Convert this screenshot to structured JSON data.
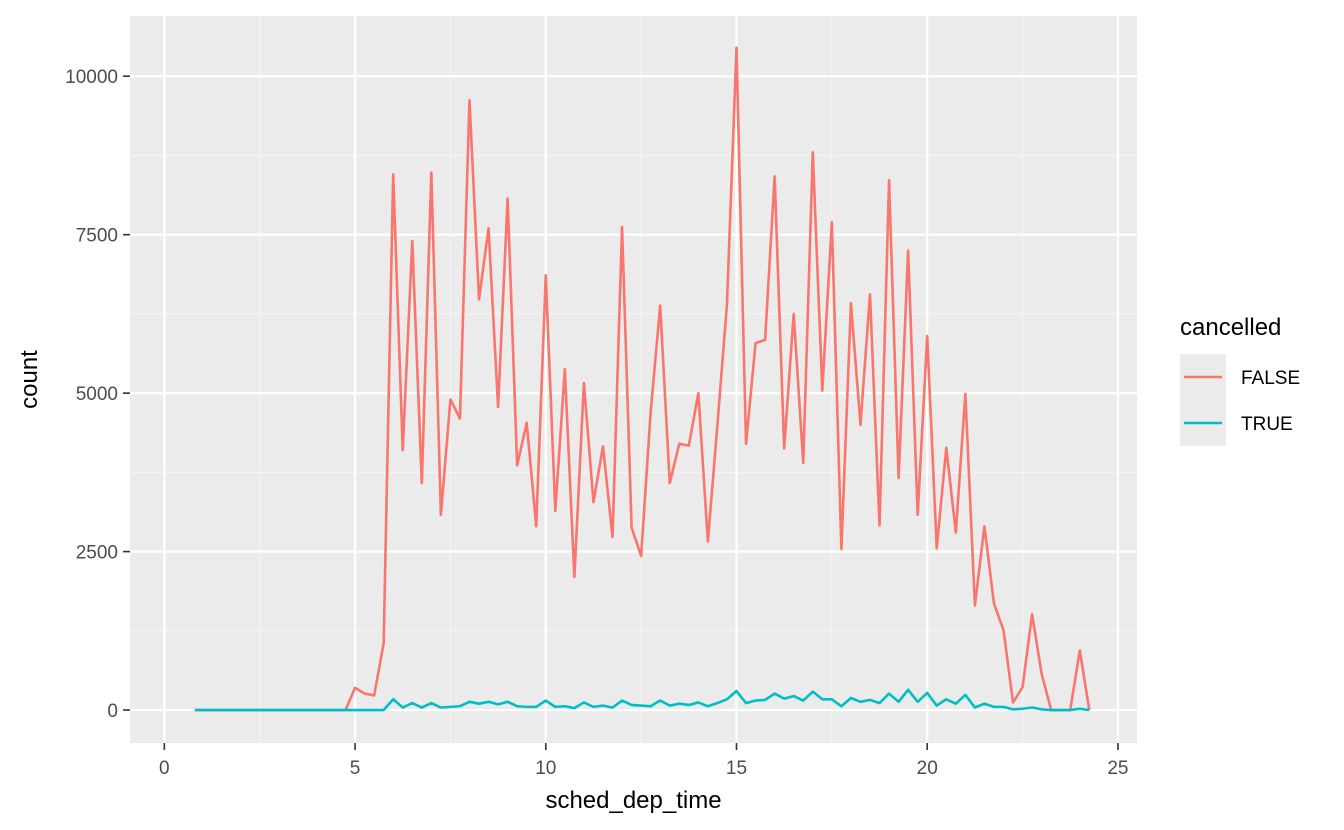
{
  "chart_data": {
    "type": "line",
    "xlabel": "sched_dep_time",
    "ylabel": "count",
    "xlim": [
      -0.9,
      25.5
    ],
    "ylim": [
      -520,
      10950
    ],
    "x_ticks": [
      0,
      5,
      10,
      15,
      20,
      25
    ],
    "y_ticks": [
      0,
      2500,
      5000,
      7500,
      10000
    ],
    "x_tick_labels": [
      "0",
      "5",
      "10",
      "15",
      "20",
      "25"
    ],
    "y_tick_labels": [
      "0",
      "2500",
      "5000",
      "7500",
      "10000"
    ],
    "grid": true,
    "legend": {
      "title": "cancelled",
      "position": "right"
    },
    "series": [
      {
        "name": "FALSE",
        "color": "#F8766D",
        "points": [
          [
            0.8,
            0
          ],
          [
            1.0,
            0
          ],
          [
            1.25,
            0
          ],
          [
            1.5,
            0
          ],
          [
            1.75,
            0
          ],
          [
            2.0,
            0
          ],
          [
            2.25,
            0
          ],
          [
            2.5,
            0
          ],
          [
            2.75,
            0
          ],
          [
            3.0,
            0
          ],
          [
            3.25,
            0
          ],
          [
            3.5,
            0
          ],
          [
            3.75,
            0
          ],
          [
            4.0,
            0
          ],
          [
            4.25,
            0
          ],
          [
            4.5,
            0
          ],
          [
            4.75,
            0
          ],
          [
            5.0,
            350
          ],
          [
            5.25,
            260
          ],
          [
            5.5,
            230
          ],
          [
            5.75,
            1050
          ],
          [
            6.0,
            8450
          ],
          [
            6.25,
            4100
          ],
          [
            6.5,
            7400
          ],
          [
            6.75,
            3580
          ],
          [
            7.0,
            8480
          ],
          [
            7.25,
            3080
          ],
          [
            7.5,
            4900
          ],
          [
            7.75,
            4600
          ],
          [
            8.0,
            9620
          ],
          [
            8.25,
            6480
          ],
          [
            8.5,
            7600
          ],
          [
            8.75,
            4780
          ],
          [
            9.0,
            8070
          ],
          [
            9.25,
            3860
          ],
          [
            9.5,
            4530
          ],
          [
            9.75,
            2900
          ],
          [
            10.0,
            6860
          ],
          [
            10.25,
            3140
          ],
          [
            10.5,
            5380
          ],
          [
            10.75,
            2100
          ],
          [
            11.0,
            5160
          ],
          [
            11.25,
            3280
          ],
          [
            11.5,
            4160
          ],
          [
            11.75,
            2730
          ],
          [
            12.0,
            7620
          ],
          [
            12.25,
            2880
          ],
          [
            12.5,
            2430
          ],
          [
            12.75,
            4700
          ],
          [
            13.0,
            6380
          ],
          [
            13.25,
            3580
          ],
          [
            13.5,
            4200
          ],
          [
            13.75,
            4170
          ],
          [
            14.0,
            5000
          ],
          [
            14.25,
            2660
          ],
          [
            14.5,
            4500
          ],
          [
            14.75,
            6400
          ],
          [
            15.0,
            10450
          ],
          [
            15.25,
            4200
          ],
          [
            15.5,
            5790
          ],
          [
            15.75,
            5840
          ],
          [
            16.0,
            8420
          ],
          [
            16.25,
            4130
          ],
          [
            16.5,
            6250
          ],
          [
            16.75,
            3900
          ],
          [
            17.0,
            8800
          ],
          [
            17.25,
            5040
          ],
          [
            17.5,
            7700
          ],
          [
            17.75,
            2540
          ],
          [
            18.0,
            6420
          ],
          [
            18.25,
            4500
          ],
          [
            18.5,
            6560
          ],
          [
            18.75,
            2910
          ],
          [
            19.0,
            8360
          ],
          [
            19.25,
            3660
          ],
          [
            19.5,
            7250
          ],
          [
            19.75,
            3080
          ],
          [
            20.0,
            5900
          ],
          [
            20.25,
            2550
          ],
          [
            20.5,
            4140
          ],
          [
            20.75,
            2800
          ],
          [
            21.0,
            4990
          ],
          [
            21.25,
            1650
          ],
          [
            21.5,
            2900
          ],
          [
            21.75,
            1680
          ],
          [
            22.0,
            1260
          ],
          [
            22.25,
            120
          ],
          [
            22.5,
            360
          ],
          [
            22.75,
            1510
          ],
          [
            23.0,
            570
          ],
          [
            23.25,
            0
          ],
          [
            23.5,
            0
          ],
          [
            23.75,
            0
          ],
          [
            24.0,
            940
          ],
          [
            24.25,
            0
          ]
        ]
      },
      {
        "name": "TRUE",
        "color": "#00BFC4",
        "points": [
          [
            0.8,
            0
          ],
          [
            1.0,
            0
          ],
          [
            1.25,
            0
          ],
          [
            1.5,
            0
          ],
          [
            1.75,
            0
          ],
          [
            2.0,
            0
          ],
          [
            2.25,
            0
          ],
          [
            2.5,
            0
          ],
          [
            2.75,
            0
          ],
          [
            3.0,
            0
          ],
          [
            3.25,
            0
          ],
          [
            3.5,
            0
          ],
          [
            3.75,
            0
          ],
          [
            4.0,
            0
          ],
          [
            4.25,
            0
          ],
          [
            4.5,
            0
          ],
          [
            4.75,
            0
          ],
          [
            5.0,
            0
          ],
          [
            5.25,
            0
          ],
          [
            5.5,
            0
          ],
          [
            5.75,
            0
          ],
          [
            6.0,
            170
          ],
          [
            6.25,
            40
          ],
          [
            6.5,
            110
          ],
          [
            6.75,
            40
          ],
          [
            7.0,
            110
          ],
          [
            7.25,
            40
          ],
          [
            7.5,
            50
          ],
          [
            7.75,
            60
          ],
          [
            8.0,
            130
          ],
          [
            8.25,
            100
          ],
          [
            8.5,
            130
          ],
          [
            8.75,
            90
          ],
          [
            9.0,
            130
          ],
          [
            9.25,
            60
          ],
          [
            9.5,
            50
          ],
          [
            9.75,
            50
          ],
          [
            10.0,
            150
          ],
          [
            10.25,
            50
          ],
          [
            10.5,
            60
          ],
          [
            10.75,
            30
          ],
          [
            11.0,
            120
          ],
          [
            11.25,
            50
          ],
          [
            11.5,
            70
          ],
          [
            11.75,
            40
          ],
          [
            12.0,
            150
          ],
          [
            12.25,
            80
          ],
          [
            12.5,
            70
          ],
          [
            12.75,
            60
          ],
          [
            13.0,
            150
          ],
          [
            13.25,
            70
          ],
          [
            13.5,
            100
          ],
          [
            13.75,
            80
          ],
          [
            14.0,
            120
          ],
          [
            14.25,
            60
          ],
          [
            14.5,
            110
          ],
          [
            14.75,
            170
          ],
          [
            15.0,
            300
          ],
          [
            15.25,
            110
          ],
          [
            15.5,
            150
          ],
          [
            15.75,
            160
          ],
          [
            16.0,
            260
          ],
          [
            16.25,
            180
          ],
          [
            16.5,
            220
          ],
          [
            16.75,
            150
          ],
          [
            17.0,
            290
          ],
          [
            17.25,
            170
          ],
          [
            17.5,
            170
          ],
          [
            17.75,
            60
          ],
          [
            18.0,
            190
          ],
          [
            18.25,
            130
          ],
          [
            18.5,
            160
          ],
          [
            18.75,
            110
          ],
          [
            19.0,
            260
          ],
          [
            19.25,
            130
          ],
          [
            19.5,
            320
          ],
          [
            19.75,
            130
          ],
          [
            20.0,
            270
          ],
          [
            20.25,
            70
          ],
          [
            20.5,
            170
          ],
          [
            20.75,
            100
          ],
          [
            21.0,
            240
          ],
          [
            21.25,
            40
          ],
          [
            21.5,
            100
          ],
          [
            21.75,
            50
          ],
          [
            22.0,
            50
          ],
          [
            22.25,
            10
          ],
          [
            22.5,
            20
          ],
          [
            22.75,
            40
          ],
          [
            23.0,
            10
          ],
          [
            23.25,
            0
          ],
          [
            23.5,
            0
          ],
          [
            23.75,
            0
          ],
          [
            24.0,
            20
          ],
          [
            24.25,
            0
          ]
        ]
      }
    ]
  },
  "colors": {
    "panel_background": "#EBEBEB",
    "grid_major": "#FFFFFF",
    "grid_minor": "#F5F5F5",
    "tick_color": "#333333",
    "tick_label_color": "#4D4D4D",
    "legend_key_background": "#EBEBEB"
  }
}
